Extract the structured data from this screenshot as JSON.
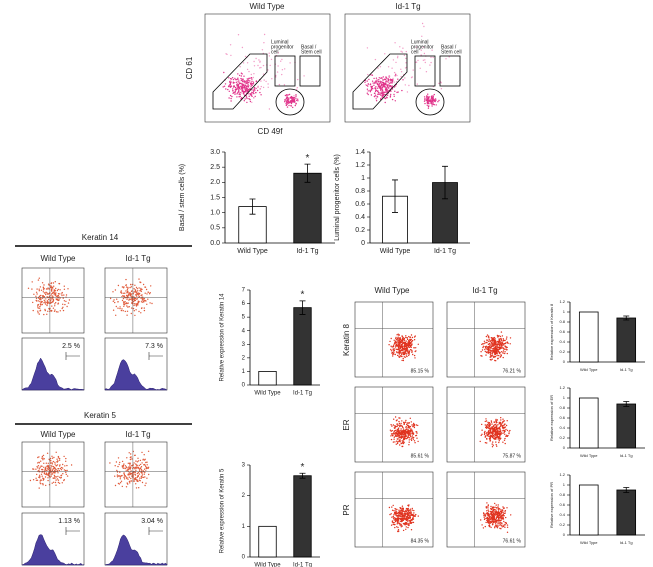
{
  "panels": {
    "top_titles": [
      "Wild Type",
      "Id-1 Tg"
    ],
    "luminal_gate": [
      "Luminal",
      "progenitor",
      "cell"
    ],
    "basal_gate": [
      "Basal /",
      "Stem cell"
    ],
    "cd61": "CD 61",
    "cd49f": "CD 49f",
    "keratin14": {
      "title": "Keratin 14",
      "columns": [
        "Wild Type",
        "Id-1 Tg"
      ],
      "percents": [
        "2.5 %",
        "7.3 %"
      ]
    },
    "keratin5": {
      "title": "Keratin 5",
      "columns": [
        "Wild Type",
        "Id-1 Tg"
      ],
      "percents": [
        "1.13 %",
        "3.04 %"
      ]
    },
    "right": {
      "columns": [
        "Wild Type",
        "Id-1 Tg"
      ],
      "rows": [
        {
          "label": "Keratin 8",
          "percents": [
            "85.15 %",
            "76.21 %"
          ]
        },
        {
          "label": "ER",
          "percents": [
            "85.61 %",
            "75.87 %"
          ]
        },
        {
          "label": "PR",
          "percents": [
            "84.35 %",
            "76.61 %"
          ]
        }
      ]
    }
  },
  "chart_data": [
    {
      "type": "bar",
      "ylabel": "Basal / stem cells (%)",
      "categories": [
        "Wild Type",
        "Id-1 Tg"
      ],
      "values": [
        1.2,
        2.3
      ],
      "errors": [
        0.25,
        0.3
      ],
      "value_annotations": [
        null,
        "*"
      ],
      "colors": [
        "#ffffff",
        "#333333"
      ],
      "ylim": [
        0,
        3
      ],
      "yticks": [
        {
          "value": 0,
          "label": "0.0"
        },
        0.5,
        {
          "value": 1,
          "label": "1.0"
        },
        1.5,
        {
          "value": 2,
          "label": "2.0"
        },
        2.5,
        {
          "value": 3,
          "label": "3.0"
        }
      ]
    },
    {
      "type": "bar",
      "ylabel": "Luminal progenitor cells (%)",
      "categories": [
        "Wild Type",
        "Id-1 Tg"
      ],
      "values": [
        0.72,
        0.93
      ],
      "errors": [
        0.25,
        0.25
      ],
      "value_annotations": [
        null,
        null
      ],
      "colors": [
        "#ffffff",
        "#333333"
      ],
      "ylim": [
        0,
        1.4
      ],
      "yticks": [
        0,
        0.2,
        0.4,
        0.6,
        0.8,
        1,
        1.2,
        1.4
      ]
    },
    {
      "type": "bar",
      "ylabel": "Relative expression of Keratin 14",
      "categories": [
        "Wild Type",
        "Id-1 Tg"
      ],
      "values": [
        1,
        5.7
      ],
      "errors": [
        0,
        0.5
      ],
      "value_annotations": [
        null,
        "*"
      ],
      "colors": [
        "#ffffff",
        "#333333"
      ],
      "ylim": [
        0,
        7
      ],
      "yticks": [
        0,
        1,
        2,
        3,
        4,
        5,
        6,
        7
      ]
    },
    {
      "type": "bar",
      "ylabel": "Relative expression of Keratin 5",
      "categories": [
        "Wild Type",
        "Id-1 Tg"
      ],
      "values": [
        1,
        2.65
      ],
      "errors": [
        0,
        0.08
      ],
      "value_annotations": [
        null,
        "*"
      ],
      "colors": [
        "#ffffff",
        "#333333"
      ],
      "ylim": [
        0,
        3
      ],
      "yticks": [
        0,
        1,
        2,
        3
      ]
    },
    {
      "type": "bar",
      "ylabel": "Relative expression of Keratin 8",
      "categories": [
        "Wild Type",
        "Id-1 Tg"
      ],
      "values": [
        1,
        0.88
      ],
      "errors": [
        0,
        0.04
      ],
      "value_annotations": [
        null,
        null
      ],
      "colors": [
        "#ffffff",
        "#333333"
      ],
      "ylim": [
        0,
        1.2
      ],
      "yticks": [
        0,
        0.2,
        0.4,
        0.6,
        0.8,
        1,
        1.2
      ]
    },
    {
      "type": "bar",
      "ylabel": "Relative expression of ER",
      "categories": [
        "Wild Type",
        "Id-1 Tg"
      ],
      "values": [
        1,
        0.88
      ],
      "errors": [
        0,
        0.05
      ],
      "value_annotations": [
        null,
        null
      ],
      "colors": [
        "#ffffff",
        "#333333"
      ],
      "ylim": [
        0,
        1.2
      ],
      "yticks": [
        0,
        0.2,
        0.4,
        0.6,
        0.8,
        1,
        1.2
      ]
    },
    {
      "type": "bar",
      "ylabel": "Relative expression of PR",
      "categories": [
        "Wild Type",
        "Id-1 Tg"
      ],
      "values": [
        1,
        0.9
      ],
      "errors": [
        0,
        0.05
      ],
      "value_annotations": [
        null,
        null
      ],
      "colors": [
        "#ffffff",
        "#333333"
      ],
      "ylim": [
        0,
        1.2
      ],
      "yticks": [
        0,
        0.2,
        0.4,
        0.6,
        0.8,
        1,
        1.2
      ]
    }
  ]
}
